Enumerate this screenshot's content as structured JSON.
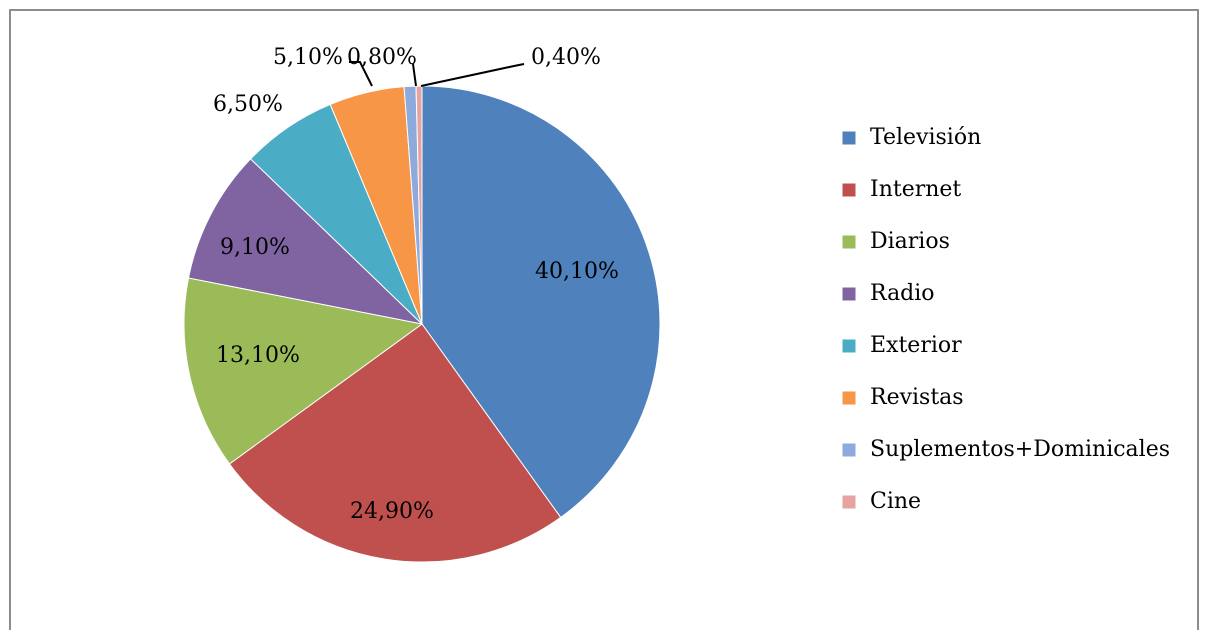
{
  "chart_data": {
    "type": "pie",
    "categories": [
      "Televisión",
      "Internet",
      "Diarios",
      "Radio",
      "Exterior",
      "Revistas",
      "Suplementos+Dominicales",
      "Cine"
    ],
    "values": [
      40.1,
      24.9,
      13.1,
      9.1,
      6.5,
      5.1,
      0.8,
      0.4
    ],
    "value_labels": [
      "40,10%",
      "24,90%",
      "13,10%",
      "9,10%",
      "6,50%",
      "5,10%",
      "0,80%",
      "0,40%"
    ],
    "colors": [
      "#4f81bd",
      "#c0504d",
      "#9bbb59",
      "#8064a2",
      "#4bacc6",
      "#f79646",
      "#8ea9db",
      "#e6a3a1"
    ],
    "legend": "right"
  }
}
